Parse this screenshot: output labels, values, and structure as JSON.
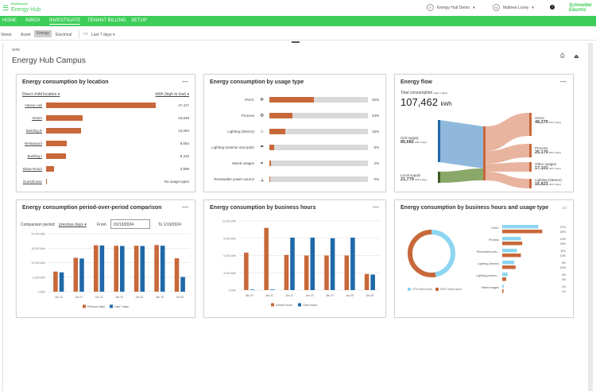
{
  "header": {
    "logo_small": "EcoStruxure",
    "app_name": "Energy Hub",
    "site_selector": "Energy Hub Demo",
    "site_initial": "E",
    "user": "Mathew Losey",
    "user_initial": "M",
    "brand": "Schneider Electric"
  },
  "nav": [
    {
      "label": "HOME"
    },
    {
      "label": "INBOX"
    },
    {
      "label": "INVESTIGATE",
      "active": true
    },
    {
      "label": "TENANT BILLING"
    },
    {
      "label": "SETUP"
    }
  ],
  "views": {
    "label": "Views:",
    "options": [
      "Asset",
      "Energy",
      "Electrical"
    ],
    "selected": "Energy",
    "date_range": "Last 7 days"
  },
  "page": {
    "section": "SITE",
    "title": "Energy Hub Campus"
  },
  "colors": {
    "green": "#3dcd58",
    "orange": "#c8683a",
    "blue": "#1f69a8",
    "light_blue": "#8dd5f0",
    "grey": "#d9d9d9"
  },
  "location_card": {
    "title": "Energy consumption by location",
    "grouping": "Direct child location",
    "sort": "kWh (high to low)",
    "rows": [
      {
        "name": "Heavy Lab",
        "value": 47417,
        "text": "47,417"
      },
      {
        "name": "Atrium",
        "value": 15648,
        "text": "15,648"
      },
      {
        "name": "Building E",
        "value": 15094,
        "text": "15,094"
      },
      {
        "name": "Restaurant",
        "value": 9084,
        "text": "9,084"
      },
      {
        "name": "Building I",
        "value": 8423,
        "text": "8,423"
      },
      {
        "name": "Show Room",
        "value": 3589,
        "text": "3,589"
      },
      {
        "name": "Guesthouse",
        "value": 0,
        "text": "No usage types"
      }
    ]
  },
  "usage_card": {
    "title": "Energy consumption by usage type",
    "rows": [
      {
        "name": "HVAC",
        "icon": "fan-icon",
        "glyph": "✲",
        "pct": 45
      },
      {
        "name": "Process",
        "icon": "process-icon",
        "glyph": "⚙",
        "pct": 23
      },
      {
        "name": "Lighting (interior)",
        "icon": "lamp-icon",
        "glyph": "♨",
        "pct": 16
      },
      {
        "name": "Lighting (exterior and park)",
        "icon": "streetlight-icon",
        "glyph": "☂",
        "pct": 5
      },
      {
        "name": "Mixed usages",
        "icon": "mixed-icon",
        "glyph": "⚭",
        "pct": 2
      },
      {
        "name": "Renewable power source",
        "icon": "plug-icon",
        "glyph": "⏚",
        "pct": 0
      }
    ]
  },
  "flow_card": {
    "title": "Energy flow",
    "total_label": "Total consumption",
    "total_period": "(Last 7 days)",
    "total_value": "107,462",
    "total_unit": "kWh",
    "unit_small": "kWh (7 days)",
    "sources": [
      {
        "name": "Grid supply",
        "value": "85,682"
      },
      {
        "name": "Local supply",
        "value": "21,779"
      }
    ],
    "targets": [
      {
        "name": "HVAC",
        "value": "48,370"
      },
      {
        "name": "Process",
        "value": "25,170"
      },
      {
        "name": "Other usages",
        "value": "17,101"
      },
      {
        "name": "Lighting (interior)",
        "value": "16,821"
      }
    ]
  },
  "chart_data": [
    {
      "type": "bar",
      "title": "Energy consumption period-over-period comparison",
      "categories": [
        "Jan 20",
        "Jan 21",
        "Jan 22",
        "Jan 23",
        "Jan 24",
        "Jan 25",
        "Jan 26"
      ],
      "ylim": [
        0,
        24000
      ],
      "yticks": [
        "0 kWh",
        "6,000 kWh",
        "12,000 kWh",
        "18,000 kWh",
        "24,000 kWh"
      ],
      "ytick_values": [
        0,
        6000,
        12000,
        18000,
        24000
      ],
      "legend": "bottom",
      "grid": true,
      "series": [
        {
          "name": "Previous days",
          "color": "#c8683a",
          "values": [
            8300,
            14000,
            19200,
            19000,
            19000,
            19300,
            13800
          ]
        },
        {
          "name": "Last 7 days",
          "color": "#1f69a8",
          "values": [
            8000,
            13700,
            19100,
            18900,
            18900,
            19000,
            6100
          ]
        }
      ]
    },
    {
      "type": "bar",
      "title": "Energy consumption by business hours",
      "categories": [
        "Jan 20",
        "Jan 21",
        "Jan 22",
        "Jan 23",
        "Jan 24",
        "Jan 25",
        "Jan 26"
      ],
      "ylim": [
        0,
        12000
      ],
      "yticks": [
        "0 kWh",
        "3,000 kWh",
        "6,000 kWh",
        "9,000 kWh",
        "12,000 kWh"
      ],
      "ytick_values": [
        0,
        3000,
        6000,
        9000,
        12000
      ],
      "legend": "bottom",
      "grid": true,
      "series": [
        {
          "name": "Closed hours",
          "color": "#c8683a",
          "values": [
            6500,
            10800,
            6100,
            6000,
            6000,
            6000,
            2800
          ]
        },
        {
          "name": "Open hours",
          "color": "#1f69a8",
          "values": [
            100,
            100,
            9100,
            9100,
            9000,
            9100,
            2700
          ]
        }
      ]
    },
    {
      "type": "pie",
      "title": "Energy consumption by business hours and usage type",
      "slices": [
        {
          "name": "Open hours",
          "pct": 47,
          "label": "47% Open hours",
          "color": "#8dd5f0"
        },
        {
          "name": "Closed hours",
          "pct": 53,
          "label": "53% Closed hours",
          "color": "#c8683a"
        }
      ],
      "categories": [
        "HVAC",
        "Process",
        "Renewable pow...",
        "Lighting (interior)",
        "Lighting (exterio...",
        "Mixed usages"
      ],
      "series": [
        {
          "name": "Open hours",
          "color": "#8dd5f0",
          "values": [
            27,
            14,
            11,
            9,
            4,
            1
          ],
          "labels": [
            "27%",
            "14%",
            "11%",
            "9%",
            "4%",
            "1%"
          ]
        },
        {
          "name": "Closed hours",
          "color": "#c8683a",
          "values": [
            30,
            15,
            14,
            10,
            3,
            1
          ],
          "labels": [
            "30%",
            "15%",
            "14%",
            "10%",
            "3%",
            "1%"
          ]
        }
      ]
    }
  ],
  "period_controls": {
    "label": "Comparison period:",
    "selected": "previous days",
    "from_label": "From",
    "from_value": "01/13/2024",
    "to_text": "To 1/19/2024"
  }
}
